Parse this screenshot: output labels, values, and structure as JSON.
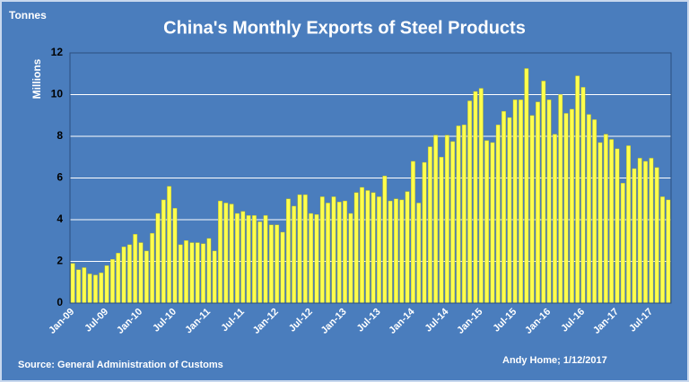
{
  "chart_data": {
    "type": "bar",
    "title": "China's Monthly Exports of Steel Products",
    "unit_label": "Tonnes",
    "y_label": "Millions",
    "source": "Source: General Administration of Customs",
    "credit": "Andy Home; 1/12/2017",
    "color": "#ffff4d",
    "grid": true,
    "ylim": [
      0,
      12
    ],
    "yticks": [
      0,
      2,
      4,
      6,
      8,
      10,
      12
    ],
    "categories": [
      "Jan-09",
      null,
      null,
      null,
      null,
      null,
      "Jul-09",
      null,
      null,
      null,
      null,
      null,
      "Jan-10",
      null,
      null,
      null,
      null,
      null,
      "Jul-10",
      null,
      null,
      null,
      null,
      null,
      "Jan-11",
      null,
      null,
      null,
      null,
      null,
      "Jul-11",
      null,
      null,
      null,
      null,
      null,
      "Jan-12",
      null,
      null,
      null,
      null,
      null,
      "Jul-12",
      null,
      null,
      null,
      null,
      null,
      "Jan-13",
      null,
      null,
      null,
      null,
      null,
      "Jul-13",
      null,
      null,
      null,
      null,
      null,
      "Jan-14",
      null,
      null,
      null,
      null,
      null,
      "Jul-14",
      null,
      null,
      null,
      null,
      null,
      "Jan-15",
      null,
      null,
      null,
      null,
      null,
      "Jul-15",
      null,
      null,
      null,
      null,
      null,
      "Jan-16",
      null,
      null,
      null,
      null,
      null,
      "Jul-16",
      null,
      null,
      null,
      null,
      null,
      "Jan-17",
      null,
      null,
      null,
      null,
      null,
      "Jul-17",
      null,
      null,
      null
    ],
    "values": [
      1.9,
      1.6,
      1.7,
      1.4,
      1.35,
      1.45,
      1.8,
      2.1,
      2.4,
      2.7,
      2.8,
      3.3,
      2.9,
      2.5,
      3.35,
      4.3,
      4.95,
      5.6,
      4.55,
      2.8,
      3.0,
      2.9,
      2.9,
      2.85,
      3.1,
      2.5,
      4.9,
      4.8,
      4.75,
      4.3,
      4.4,
      4.2,
      4.2,
      3.9,
      4.2,
      3.75,
      3.75,
      3.4,
      5.0,
      4.65,
      5.2,
      5.2,
      4.3,
      4.25,
      5.1,
      4.8,
      5.1,
      4.85,
      4.9,
      4.3,
      5.3,
      5.55,
      5.4,
      5.3,
      5.1,
      6.1,
      4.9,
      5.0,
      4.95,
      5.35,
      6.8,
      4.8,
      6.75,
      7.5,
      8.05,
      7.0,
      8.05,
      7.75,
      8.5,
      8.55,
      9.7,
      10.15,
      10.3,
      7.8,
      7.7,
      8.55,
      9.2,
      8.9,
      9.75,
      9.75,
      11.25,
      9.0,
      9.65,
      10.65,
      9.75,
      8.1,
      10.0,
      9.1,
      9.3,
      10.9,
      10.35,
      9.05,
      8.8,
      7.7,
      8.1,
      7.85,
      7.4,
      5.75,
      7.55,
      6.45,
      6.95,
      6.8,
      6.95,
      6.5,
      5.1,
      4.95
    ]
  }
}
